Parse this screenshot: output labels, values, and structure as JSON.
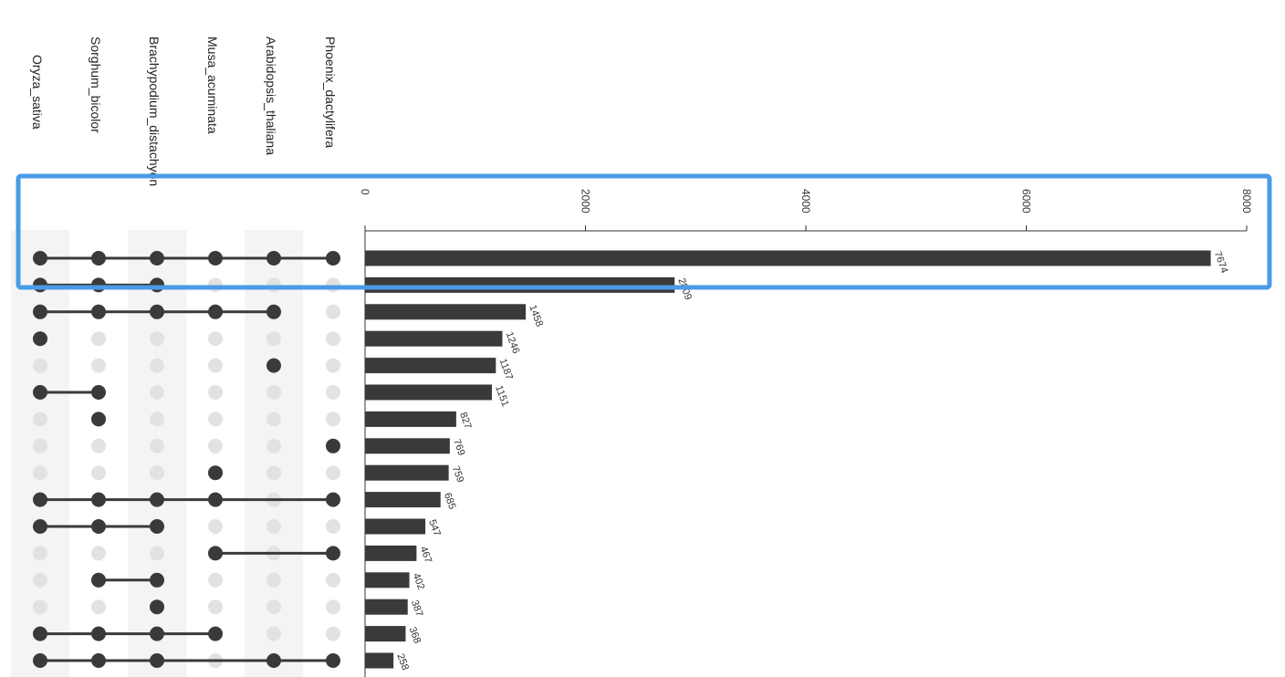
{
  "chart_data": {
    "type": "bar",
    "subtype": "upset",
    "orientation": "horizontal",
    "sets": [
      "Oryza_sativa",
      "Sorghum_bicolor",
      "Brachypodium_distachyon",
      "Musa_acuminata",
      "Arabidopsis_thaliana",
      "Phoenix_dactylifera"
    ],
    "intersections": [
      {
        "sets": [
          "Oryza_sativa",
          "Sorghum_bicolor",
          "Brachypodium_distachyon",
          "Musa_acuminata",
          "Arabidopsis_thaliana",
          "Phoenix_dactylifera"
        ],
        "value": 7674
      },
      {
        "sets": [
          "Oryza_sativa",
          "Sorghum_bicolor",
          "Brachypodium_distachyon"
        ],
        "value": 2809
      },
      {
        "sets": [
          "Oryza_sativa",
          "Sorghum_bicolor",
          "Brachypodium_distachyon",
          "Musa_acuminata",
          "Arabidopsis_thaliana"
        ],
        "value": 1458
      },
      {
        "sets": [
          "Oryza_sativa"
        ],
        "value": 1246
      },
      {
        "sets": [
          "Arabidopsis_thaliana"
        ],
        "value": 1187
      },
      {
        "sets": [
          "Oryza_sativa",
          "Sorghum_bicolor"
        ],
        "value": 1151
      },
      {
        "sets": [
          "Sorghum_bicolor"
        ],
        "value": 827
      },
      {
        "sets": [
          "Phoenix_dactylifera"
        ],
        "value": 769
      },
      {
        "sets": [
          "Musa_acuminata"
        ],
        "value": 759
      },
      {
        "sets": [
          "Oryza_sativa",
          "Sorghum_bicolor",
          "Brachypodium_distachyon",
          "Musa_acuminata",
          "Phoenix_dactylifera"
        ],
        "value": 685
      },
      {
        "sets": [
          "Oryza_sativa",
          "Sorghum_bicolor",
          "Brachypodium_distachyon"
        ],
        "value": 547
      },
      {
        "sets": [
          "Musa_acuminata",
          "Phoenix_dactylifera"
        ],
        "value": 467
      },
      {
        "sets": [
          "Sorghum_bicolor",
          "Brachypodium_distachyon"
        ],
        "value": 402
      },
      {
        "sets": [
          "Brachypodium_distachyon"
        ],
        "value": 387
      },
      {
        "sets": [
          "Oryza_sativa",
          "Sorghum_bicolor",
          "Brachypodium_distachyon",
          "Musa_acuminata"
        ],
        "value": 368
      },
      {
        "sets": [
          "Oryza_sativa",
          "Sorghum_bicolor",
          "Brachypodium_distachyon",
          "Arabidopsis_thaliana",
          "Phoenix_dactylifera"
        ],
        "value": 258
      }
    ],
    "value_labels": [
      "7674",
      "2809",
      "1458",
      "1246",
      "1187",
      "1151",
      "827",
      "769",
      "759",
      "685",
      "547",
      "467",
      "402",
      "387",
      "368",
      "258"
    ],
    "xaxis": {
      "range": [
        0,
        8000
      ],
      "ticks": [
        0,
        2000,
        4000,
        6000,
        8000
      ],
      "tick_labels": [
        "0",
        "2000",
        "4000",
        "6000",
        "8000"
      ],
      "position": "top"
    },
    "grid": false,
    "legend": "none",
    "highlight": {
      "description": "blue box",
      "color": "#4a9be8"
    },
    "colors": {
      "bar": "#3a3a3a",
      "dot_active": "#3a3a3a",
      "dot_inactive": "#e2e2e2",
      "column_stripe": "#f4f4f4",
      "axis": "#333333"
    }
  }
}
